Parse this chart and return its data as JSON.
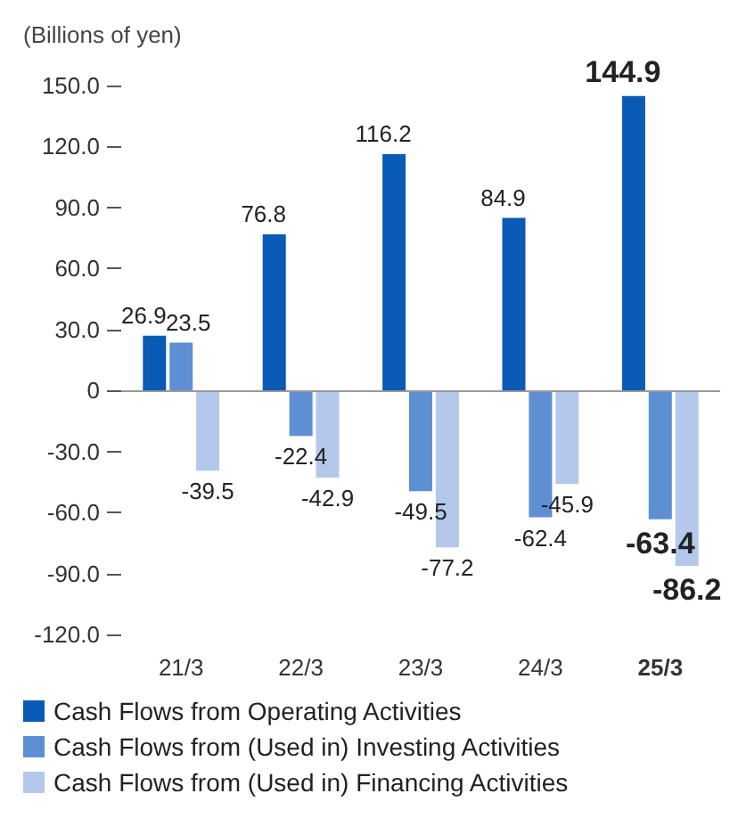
{
  "chart_data": {
    "type": "bar",
    "ylabel": "(Billions of yen)",
    "categories": [
      "21/3",
      "22/3",
      "23/3",
      "24/3",
      "25/3"
    ],
    "series": [
      {
        "name": "Cash Flows from Operating Activities",
        "color": "#0a5bb5",
        "values": [
          26.9,
          76.8,
          116.2,
          84.9,
          144.9
        ]
      },
      {
        "name": "Cash Flows from (Used in) Investing Activities",
        "color": "#5f8fd3",
        "values": [
          23.5,
          -22.4,
          -49.5,
          -62.4,
          -63.4
        ]
      },
      {
        "name": "Cash Flows from (Used in) Financing Activities",
        "color": "#b4c8ec",
        "values": [
          -39.5,
          -42.9,
          -77.2,
          -45.9,
          -86.2
        ]
      }
    ],
    "ylim": [
      -120,
      150
    ],
    "yticks": [
      {
        "value": -120,
        "label": "-120.0"
      },
      {
        "value": -90,
        "label": "-90.0"
      },
      {
        "value": -60,
        "label": "-60.0"
      },
      {
        "value": -30,
        "label": "-30.0"
      },
      0,
      {
        "value": 30,
        "label": "30.0"
      },
      {
        "value": 60,
        "label": "60.0"
      },
      {
        "value": 90,
        "label": "90.0"
      },
      {
        "value": 120,
        "label": "120.0"
      },
      {
        "value": 150,
        "label": "150.0"
      }
    ],
    "ref_lines": [
      {
        "axis": "y",
        "value": 0,
        "color": "#999999"
      }
    ],
    "data_labels": true,
    "grid": false,
    "legend": "bottom"
  }
}
